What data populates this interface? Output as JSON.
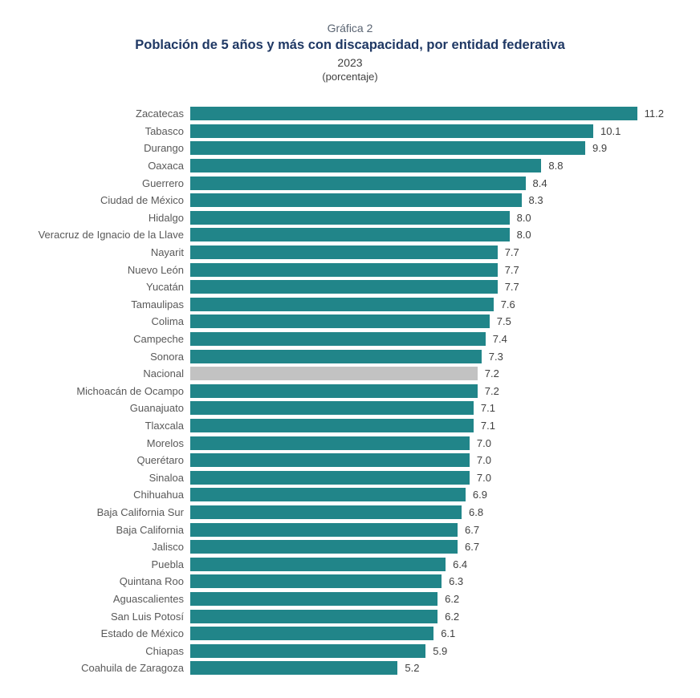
{
  "header": {
    "pretitle": "Gráfica 2",
    "title": "Población de 5 años y más con discapacidad, por entidad federativa",
    "year": "2023",
    "unit": "(porcentaje)"
  },
  "colors": {
    "bar": "#218589",
    "highlight_bar": "#c2c2c2",
    "category_label": "#595959",
    "value_label": "#3f3f3f",
    "title": "#1f3864",
    "pretitle": "#5a6472"
  },
  "chart_data": {
    "type": "bar",
    "orientation": "horizontal",
    "subtitle": "Gráfica 2",
    "title": "Población de 5 años y más con discapacidad, por entidad federativa",
    "year": "2023",
    "unit_label": "(porcentaje)",
    "xlim": [
      0,
      11.2
    ],
    "grid": false,
    "axis_lines": false,
    "value_labels": true,
    "value_decimals": 1,
    "highlight_category": "Nacional",
    "categories": [
      "Zacatecas",
      "Tabasco",
      "Durango",
      "Oaxaca",
      "Guerrero",
      "Ciudad de México",
      "Hidalgo",
      "Veracruz de Ignacio de la Llave",
      "Nayarit",
      "Nuevo León",
      "Yucatán",
      "Tamaulipas",
      "Colima",
      "Campeche",
      "Sonora",
      "Nacional",
      "Michoacán de Ocampo",
      "Guanajuato",
      "Tlaxcala",
      "Morelos",
      "Querétaro",
      "Sinaloa",
      "Chihuahua",
      "Baja California Sur",
      "Baja California",
      "Jalisco",
      "Puebla",
      "Quintana Roo",
      "Aguascalientes",
      "San Luis Potosí",
      "Estado de México",
      "Chiapas",
      "Coahuila de Zaragoza"
    ],
    "values": [
      11.2,
      10.1,
      9.9,
      8.8,
      8.4,
      8.3,
      8.0,
      8.0,
      7.7,
      7.7,
      7.7,
      7.6,
      7.5,
      7.4,
      7.3,
      7.2,
      7.2,
      7.1,
      7.1,
      7.0,
      7.0,
      7.0,
      6.9,
      6.8,
      6.7,
      6.7,
      6.4,
      6.3,
      6.2,
      6.2,
      6.1,
      5.9,
      5.2
    ]
  }
}
